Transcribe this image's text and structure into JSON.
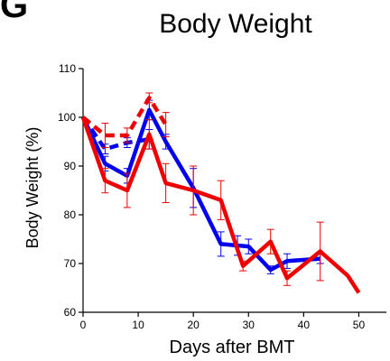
{
  "panel_letter": "G",
  "chart_data": {
    "type": "line",
    "title": "Body Weight",
    "xlabel": "Days after BMT",
    "ylabel": "Body Weight (%)",
    "xlim": [
      0,
      55
    ],
    "ylim": [
      60,
      110
    ],
    "xticks": [
      0,
      10,
      20,
      30,
      40,
      50
    ],
    "yticks": [
      60,
      70,
      80,
      90,
      100,
      110
    ],
    "grid": false,
    "series": [
      {
        "color": "#0000ee",
        "dash": false,
        "x": [
          0,
          4,
          8,
          12,
          15,
          20,
          25,
          28,
          30,
          34,
          37,
          43
        ],
        "y": [
          100,
          90.5,
          88,
          101.5,
          95,
          85.5,
          74,
          73.7,
          73.5,
          68.7,
          70.5,
          71
        ],
        "err": [
          0,
          1.5,
          1.5,
          2,
          1.5,
          4,
          2.5,
          2,
          1.5,
          0.8,
          1.5,
          1
        ]
      },
      {
        "color": "#0000ee",
        "dash": true,
        "x": [
          0,
          4,
          8,
          12
        ],
        "y": [
          100,
          93.5,
          94.8,
          95.5
        ],
        "err": [
          0,
          1,
          1,
          2
        ]
      },
      {
        "color": "#ee0000",
        "dash": false,
        "x": [
          0,
          4,
          8,
          12,
          15,
          20,
          25,
          29,
          34,
          37,
          43,
          48,
          50
        ],
        "y": [
          100,
          87,
          85,
          96.5,
          86.5,
          85,
          83,
          69.5,
          74.5,
          67,
          72.5,
          67.5,
          64
        ],
        "err": [
          0,
          2.5,
          3.5,
          3,
          4,
          5,
          4,
          1,
          2.5,
          1.5,
          6,
          0,
          0
        ]
      },
      {
        "color": "#ee0000",
        "dash": true,
        "x": [
          0,
          4,
          8,
          12,
          15
        ],
        "y": [
          100,
          96.3,
          96.3,
          104,
          98.5
        ],
        "err": [
          0,
          2.5,
          1.5,
          1,
          2.5
        ]
      }
    ]
  }
}
